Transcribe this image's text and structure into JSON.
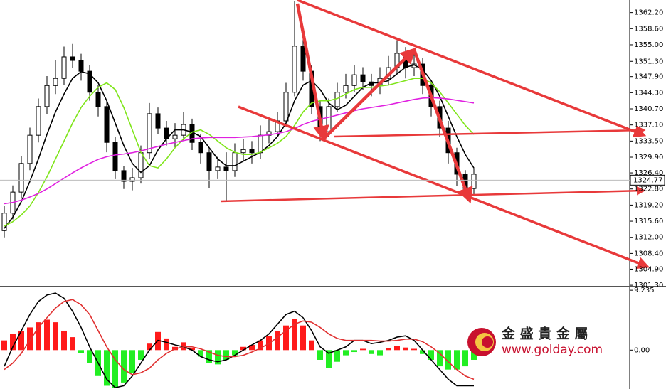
{
  "chart_data": [
    {
      "type": "candlestick",
      "open": [
        1313.5,
        1317.4,
        1322.1,
        1328.5,
        1334.8,
        1341.2,
        1345.9,
        1347.5,
        1352.3,
        1351.5,
        1349.1,
        1344.4,
        1341.2,
        1333.2,
        1326.9,
        1324.5,
        1325.3,
        1330.9,
        1339.6,
        1336.4,
        1334.0,
        1334.8,
        1337.2,
        1333.2,
        1330.9,
        1326.9,
        1327.7,
        1326.9,
        1330.9,
        1331.6,
        1330.9,
        1334.8,
        1335.6,
        1338.0,
        1344.4,
        1354.7,
        1349.1,
        1341.2,
        1335.6,
        1341.2,
        1344.4,
        1345.9,
        1348.3,
        1346.7,
        1345.9,
        1347.5,
        1349.9,
        1353.1,
        1349.9,
        1350.7,
        1345.9,
        1341.2,
        1336.4,
        1330.9,
        1326.1,
        1322.9
      ],
      "high": [
        1319.0,
        1323.6,
        1330.2,
        1336.5,
        1343.0,
        1348.0,
        1351.5,
        1354.6,
        1355.2,
        1353.0,
        1350.5,
        1346.0,
        1342.5,
        1334.5,
        1328.0,
        1327.5,
        1332.5,
        1342.0,
        1341.0,
        1338.0,
        1337.5,
        1340.0,
        1338.5,
        1335.0,
        1332.0,
        1330.0,
        1331.0,
        1333.0,
        1334.0,
        1333.5,
        1337.0,
        1338.5,
        1340.0,
        1346.5,
        1364.8,
        1356.5,
        1350.5,
        1342.5,
        1343.0,
        1346.5,
        1348.5,
        1350.5,
        1350.0,
        1348.5,
        1350.0,
        1352.5,
        1356.0,
        1354.5,
        1353.0,
        1352.0,
        1347.0,
        1342.5,
        1338.0,
        1332.0,
        1327.0,
        1327.5
      ],
      "low": [
        1312.0,
        1316.0,
        1320.8,
        1327.0,
        1333.2,
        1339.5,
        1344.0,
        1346.0,
        1349.8,
        1347.0,
        1342.5,
        1339.0,
        1331.0,
        1325.0,
        1322.8,
        1322.5,
        1324.0,
        1329.5,
        1335.0,
        1332.5,
        1332.0,
        1333.5,
        1331.5,
        1328.5,
        1323.0,
        1325.0,
        1320.2,
        1325.5,
        1329.0,
        1328.5,
        1329.5,
        1333.0,
        1334.5,
        1337.0,
        1343.5,
        1347.0,
        1339.5,
        1333.5,
        1334.5,
        1340.0,
        1343.0,
        1344.5,
        1345.0,
        1343.5,
        1344.0,
        1346.0,
        1348.5,
        1347.5,
        1348.0,
        1344.0,
        1339.0,
        1334.5,
        1328.5,
        1323.5,
        1321.0,
        1321.5
      ],
      "close": [
        1317.4,
        1322.1,
        1328.5,
        1334.8,
        1341.2,
        1345.9,
        1347.5,
        1352.3,
        1351.5,
        1349.1,
        1344.4,
        1341.2,
        1333.2,
        1326.9,
        1324.5,
        1325.3,
        1330.9,
        1339.6,
        1336.4,
        1334.0,
        1334.8,
        1337.2,
        1333.2,
        1330.9,
        1326.9,
        1327.7,
        1326.9,
        1330.9,
        1331.6,
        1330.9,
        1334.8,
        1335.6,
        1338.0,
        1344.4,
        1354.7,
        1349.1,
        1341.2,
        1335.6,
        1341.2,
        1344.4,
        1345.9,
        1348.3,
        1346.7,
        1345.9,
        1347.5,
        1349.9,
        1353.1,
        1349.9,
        1350.7,
        1345.9,
        1341.2,
        1336.4,
        1330.9,
        1326.1,
        1322.9,
        1326.1
      ],
      "series": [
        {
          "color": "#000000",
          "values": [
            1314.0,
            1316.5,
            1320.0,
            1324.5,
            1329.5,
            1335.0,
            1340.0,
            1344.0,
            1347.5,
            1349.0,
            1348.5,
            1346.5,
            1342.5,
            1337.5,
            1332.5,
            1328.5,
            1326.5,
            1328.0,
            1331.5,
            1334.0,
            1336.0,
            1336.0,
            1335.5,
            1334.5,
            1332.0,
            1329.5,
            1328.0,
            1328.0,
            1329.0,
            1330.0,
            1331.0,
            1332.5,
            1334.5,
            1337.5,
            1342.5,
            1346.0,
            1347.0,
            1345.0,
            1342.0,
            1340.5,
            1341.5,
            1343.5,
            1345.5,
            1346.5,
            1346.5,
            1347.0,
            1348.5,
            1350.0,
            1350.5,
            1349.5,
            1347.0,
            1343.5,
            1339.0,
            1334.5,
            1330.5,
            1327.5
          ]
        },
        {
          "color": "#7fe51a",
          "values": [
            1314.5,
            1315.5,
            1317.0,
            1319.0,
            1322.0,
            1325.5,
            1329.5,
            1333.5,
            1337.5,
            1341.0,
            1343.5,
            1345.5,
            1346.5,
            1345.0,
            1341.0,
            1336.0,
            1331.0,
            1328.0,
            1327.5,
            1329.5,
            1332.0,
            1334.0,
            1335.5,
            1336.0,
            1335.0,
            1333.5,
            1332.0,
            1331.0,
            1330.5,
            1330.5,
            1331.0,
            1332.0,
            1333.0,
            1334.5,
            1337.0,
            1340.0,
            1342.0,
            1342.5,
            1342.5,
            1343.0,
            1344.0,
            1345.0,
            1345.5,
            1345.5,
            1345.8,
            1346.0,
            1346.5,
            1347.0,
            1347.5,
            1347.5,
            1346.5,
            1344.5,
            1342.0,
            1339.5,
            1337.0,
            1335.0
          ]
        },
        {
          "color": "#e020e0",
          "values": [
            1319.5,
            1319.8,
            1320.3,
            1321.0,
            1321.8,
            1322.8,
            1324.0,
            1325.2,
            1326.4,
            1327.5,
            1328.5,
            1329.4,
            1330.0,
            1330.4,
            1330.6,
            1330.9,
            1331.3,
            1331.8,
            1332.3,
            1332.8,
            1333.2,
            1333.6,
            1334.0,
            1334.2,
            1334.3,
            1334.3,
            1334.3,
            1334.3,
            1334.4,
            1334.5,
            1334.7,
            1334.9,
            1335.2,
            1335.6,
            1336.3,
            1337.2,
            1337.9,
            1338.4,
            1338.8,
            1339.3,
            1339.8,
            1340.3,
            1340.7,
            1341.0,
            1341.3,
            1341.6,
            1342.0,
            1342.4,
            1342.8,
            1343.1,
            1343.2,
            1343.1,
            1342.9,
            1342.6,
            1342.3,
            1342.0
          ]
        }
      ],
      "last_price": 1324.77,
      "ylim": [
        1301.0,
        1365.0
      ],
      "yticks": [
        {
          "value": 1362.2,
          "label": "1362.20"
        },
        {
          "value": 1358.6,
          "label": "1358.60"
        },
        {
          "value": 1355.0,
          "label": "1355.00"
        },
        {
          "value": 1351.3,
          "label": "1351.30"
        },
        {
          "value": 1347.9,
          "label": "1347.90"
        },
        {
          "value": 1344.3,
          "label": "1344.30"
        },
        {
          "value": 1340.7,
          "label": "1340.70"
        },
        {
          "value": 1337.1,
          "label": "1337.10"
        },
        {
          "value": 1333.5,
          "label": "1333.50"
        },
        {
          "value": 1329.9,
          "label": "1329.90"
        },
        {
          "value": 1326.4,
          "label": "1326.40"
        },
        {
          "value": 1322.8,
          "label": "1322.80"
        },
        {
          "value": 1319.2,
          "label": "1319.20"
        },
        {
          "value": 1315.6,
          "label": "1315.60"
        },
        {
          "value": 1312.0,
          "label": "1312.00"
        },
        {
          "value": 1308.4,
          "label": "1308.40"
        },
        {
          "value": 1304.9,
          "label": "1304.90"
        },
        {
          "value": 1301.3,
          "label": "1301.30"
        }
      ]
    },
    {
      "type": "macd",
      "values": [
        1.5,
        2.5,
        3.0,
        3.5,
        4.3,
        4.7,
        4.3,
        3.0,
        2.0,
        -0.5,
        -2.0,
        -4.0,
        -5.5,
        -5.8,
        -5.0,
        -3.5,
        -1.5,
        1.0,
        2.8,
        1.8,
        0.5,
        1.2,
        0.3,
        -1.0,
        -2.0,
        -2.2,
        -1.5,
        -0.8,
        0.5,
        0.8,
        1.5,
        2.2,
        3.0,
        3.8,
        4.8,
        3.8,
        1.5,
        -1.5,
        -2.8,
        -1.8,
        -0.8,
        -0.3,
        0.2,
        -0.6,
        -0.8,
        0.3,
        0.6,
        0.4,
        0.2,
        -0.6,
        -1.5,
        -2.5,
        -3.0,
        -3.0,
        -2.5,
        -1.5
      ],
      "up_color": "#ff1a1a",
      "down_color": "#22ee22",
      "series": [
        {
          "color": "#000000",
          "values": [
            -2.5,
            0.5,
            3.0,
            5.5,
            7.5,
            8.5,
            8.8,
            8.0,
            6.0,
            3.5,
            0.5,
            -2.0,
            -4.5,
            -5.8,
            -5.5,
            -4.0,
            -2.0,
            0.0,
            1.5,
            1.2,
            0.8,
            0.5,
            0.0,
            -1.0,
            -1.5,
            -1.8,
            -1.5,
            -0.8,
            0.0,
            0.8,
            1.5,
            2.5,
            4.0,
            5.5,
            6.0,
            5.0,
            3.0,
            0.5,
            -0.5,
            0.0,
            0.5,
            1.5,
            1.5,
            1.0,
            1.2,
            1.5,
            2.0,
            2.2,
            1.5,
            0.0,
            -1.5,
            -3.0,
            -4.5,
            -5.5,
            -5.5,
            -5.5
          ]
        },
        {
          "color": "#e03030",
          "values": [
            -3.0,
            -2.0,
            -0.5,
            1.5,
            3.5,
            5.0,
            6.5,
            7.5,
            7.8,
            7.0,
            5.5,
            3.0,
            0.5,
            -1.5,
            -3.0,
            -3.8,
            -3.5,
            -2.8,
            -1.5,
            -0.5,
            0.2,
            0.5,
            0.5,
            0.2,
            -0.3,
            -0.8,
            -1.0,
            -1.0,
            -0.8,
            -0.3,
            0.3,
            1.0,
            2.0,
            3.0,
            4.0,
            4.5,
            4.3,
            3.5,
            2.5,
            1.8,
            1.5,
            1.5,
            1.5,
            1.5,
            1.4,
            1.4,
            1.5,
            1.7,
            1.7,
            1.3,
            0.5,
            -0.5,
            -1.8,
            -3.0,
            -4.0,
            -4.5
          ]
        }
      ],
      "ylim": [
        -6.0,
        9.8
      ],
      "yticks": [
        9.235,
        {
          "value": 0,
          "label": "0.00"
        }
      ]
    }
  ],
  "logo": {
    "name": "金 盛 貴 金 屬",
    "url": "www.golday.com"
  }
}
